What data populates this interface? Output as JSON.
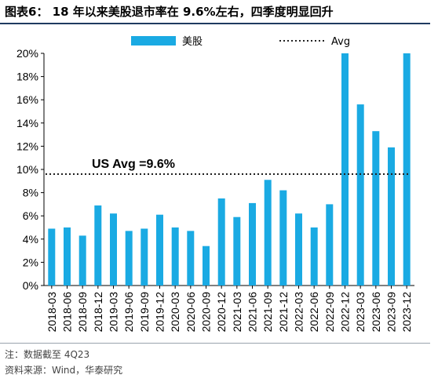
{
  "title": "图表6： 18 年以来美股退市率在 9.6%左右，四季度明显回升",
  "footer": {
    "note": "注：数据截至 4Q23",
    "source": "资料来源：Wind，华泰研究"
  },
  "colors": {
    "bar": "#1aaae3",
    "avg_line": "#222222",
    "title_rule": "#1f3a60"
  },
  "chart_data": {
    "type": "bar",
    "categories": [
      "2018-03",
      "2018-06",
      "2018-09",
      "2018-12",
      "2019-03",
      "2019-06",
      "2019-09",
      "2019-12",
      "2020-03",
      "2020-06",
      "2020-09",
      "2020-12",
      "2021-03",
      "2021-06",
      "2021-09",
      "2021-12",
      "2022-03",
      "2022-06",
      "2022-09",
      "2022-12",
      "2023-03",
      "2023-06",
      "2023-09",
      "2023-12"
    ],
    "series": [
      {
        "name": "美股",
        "values": [
          4.9,
          5.0,
          4.3,
          6.9,
          6.2,
          4.7,
          4.9,
          6.1,
          5.0,
          4.7,
          3.4,
          7.5,
          5.9,
          7.1,
          9.1,
          8.2,
          6.2,
          5.0,
          7.0,
          20.0,
          15.6,
          13.3,
          11.9,
          20.0
        ]
      }
    ],
    "average": {
      "name": "Avg",
      "value": 9.6,
      "label": "US Avg =9.6%"
    },
    "ylim": [
      0,
      20
    ],
    "yticks": [
      "0%",
      "2%",
      "4%",
      "6%",
      "8%",
      "10%",
      "12%",
      "14%",
      "16%",
      "18%",
      "20%"
    ],
    "ytick_values": [
      0,
      2,
      4,
      6,
      8,
      10,
      12,
      14,
      16,
      18,
      20
    ],
    "legend_position": "top",
    "grid": false
  }
}
